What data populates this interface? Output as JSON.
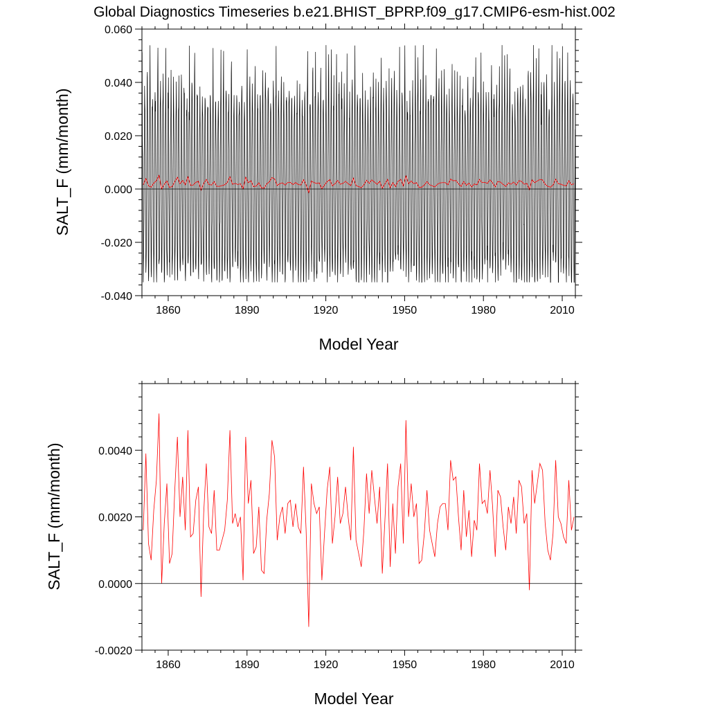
{
  "figure": {
    "title": "Global Diagnostics Timeseries b.e21.BHIST_BPRP.f09_g17.CMIP6-esm-hist.002"
  },
  "colors": {
    "monthly": "#000000",
    "annual": "#ff0000",
    "zero_line": "#000000"
  },
  "chart_data": [
    {
      "type": "line",
      "panel": "top",
      "xlabel": "Model Year",
      "ylabel": "SALT_F (mm/month)",
      "xlim": [
        1850,
        2015
      ],
      "ylim": [
        -0.04,
        0.06
      ],
      "x_ticks": [
        1860,
        1890,
        1920,
        1950,
        1980,
        2010
      ],
      "x_tick_labels": [
        "1860",
        "1890",
        "1920",
        "1950",
        "1980",
        "2010"
      ],
      "y_ticks": [
        -0.04,
        -0.02,
        0.0,
        0.02,
        0.04,
        0.06
      ],
      "y_tick_labels": [
        "-0.040",
        "-0.020",
        "0.000",
        "0.020",
        "0.040",
        "0.060"
      ],
      "reference_line": 0.0,
      "series": [
        {
          "name": "monthly",
          "color": "#000000",
          "description_range": "oscillating monthly values roughly between -0.035 and 0.054",
          "generated_from": {
            "start_year": 1850,
            "end_year": 2014,
            "mean": 0.002,
            "amp_max": 0.054,
            "amp_min": -0.035
          }
        },
        {
          "name": "annual",
          "color": "#ff0000",
          "ref": "annual_means"
        }
      ]
    },
    {
      "type": "line",
      "panel": "bottom",
      "xlabel": "Model Year",
      "ylabel": "SALT_F (mm/month)",
      "xlim": [
        1850,
        2015
      ],
      "ylim": [
        -0.002,
        0.006
      ],
      "x_ticks": [
        1860,
        1890,
        1920,
        1950,
        1980,
        2010
      ],
      "x_tick_labels": [
        "1860",
        "1890",
        "1920",
        "1950",
        "1980",
        "2010"
      ],
      "y_ticks": [
        -0.002,
        0.0,
        0.002,
        0.004
      ],
      "y_tick_labels": [
        "-0.0020",
        "0.0000",
        "0.0020",
        "0.0040"
      ],
      "reference_line": 0.0,
      "series": [
        {
          "name": "annual",
          "color": "#ff0000",
          "ref": "annual_means"
        }
      ]
    }
  ],
  "annual_means": {
    "start_year": 1850,
    "values": [
      0.0016,
      0.0039,
      0.0012,
      0.0007,
      0.0022,
      0.0031,
      0.0051,
      0.0,
      0.0018,
      0.003,
      0.0006,
      0.0009,
      0.0028,
      0.0044,
      0.002,
      0.0032,
      0.0016,
      0.0046,
      0.0014,
      0.0015,
      0.0025,
      0.0029,
      -0.0004,
      0.0021,
      0.0036,
      0.0017,
      0.0015,
      0.0028,
      0.001,
      0.001,
      0.0013,
      0.0016,
      0.0025,
      0.0046,
      0.0018,
      0.0021,
      0.0017,
      0.002,
      0.0001,
      0.0044,
      0.0024,
      0.0031,
      0.0009,
      0.0011,
      0.0023,
      0.0004,
      0.0003,
      0.0019,
      0.0027,
      0.0043,
      0.0038,
      0.0013,
      0.002,
      0.0023,
      0.0015,
      0.0024,
      0.0025,
      0.0017,
      0.0024,
      0.0017,
      0.0015,
      0.0035,
      0.0016,
      -0.0013,
      0.003,
      0.0024,
      0.0021,
      0.0023,
      0.0001,
      0.0015,
      0.0028,
      0.0035,
      0.0012,
      0.002,
      0.0032,
      0.0018,
      0.0021,
      0.0029,
      0.002,
      0.0013,
      0.0041,
      0.0013,
      0.0009,
      0.0005,
      0.0016,
      0.0033,
      0.0021,
      0.0034,
      0.0026,
      0.0018,
      0.0029,
      0.0003,
      0.0019,
      0.0036,
      0.0005,
      0.0024,
      0.0009,
      0.0029,
      0.0036,
      0.0012,
      0.0049,
      0.002,
      0.003,
      0.002,
      0.0024,
      0.0006,
      0.0007,
      0.0015,
      0.0028,
      0.0016,
      0.0012,
      0.0008,
      0.0018,
      0.0023,
      0.0024,
      0.0024,
      0.0016,
      0.0037,
      0.0031,
      0.0032,
      0.002,
      0.001,
      0.0028,
      0.0014,
      0.0022,
      0.0008,
      0.0019,
      0.0016,
      0.0036,
      0.0024,
      0.0025,
      0.0021,
      0.0034,
      0.0023,
      0.0008,
      0.0028,
      0.0026,
      0.0017,
      0.001,
      0.0023,
      0.0018,
      0.0026,
      0.0015,
      0.0031,
      0.0029,
      0.0018,
      0.0021,
      -0.0002,
      0.0034,
      0.0024,
      0.003,
      0.0036,
      0.0034,
      0.0018,
      0.001,
      0.0007,
      0.0015,
      0.0037,
      0.002,
      0.0018,
      0.0014,
      0.0012,
      0.0031,
      0.0016,
      0.002
    ]
  }
}
